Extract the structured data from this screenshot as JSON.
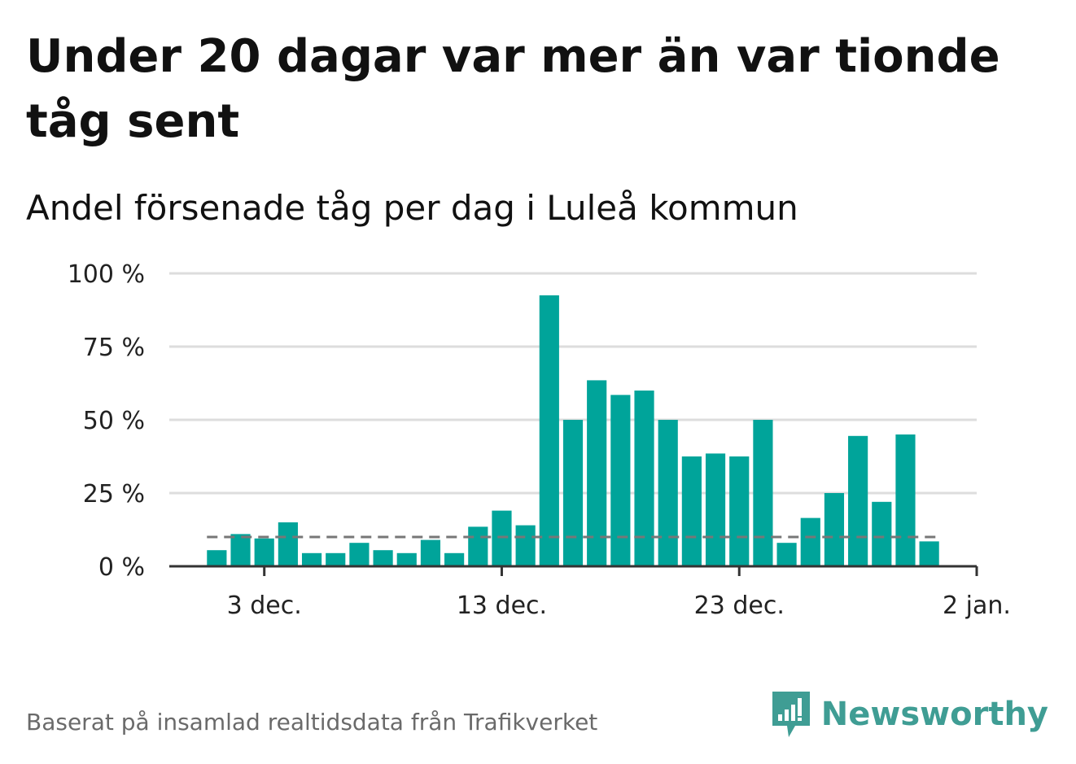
{
  "title": "Under 20 dagar var mer än var tionde tåg sent",
  "subtitle": "Andel försenade tåg per dag i Luleå kommun",
  "footer": "Baserat på insamlad realtidsdata från Trafikverket",
  "brand": {
    "name": "Newsworthy",
    "logo_icon": "newsworthy-bars-icon"
  },
  "colors": {
    "bar": "#00a49a",
    "reference_line": "#777777",
    "grid": "#dddddd",
    "axis": "#333333",
    "brand": "#3f9d94"
  },
  "chart_data": {
    "type": "bar",
    "title": "Under 20 dagar var mer än var tionde tåg sent",
    "subtitle": "Andel försenade tåg per dag i Luleå kommun",
    "x": [
      "2023-12-01",
      "2023-12-02",
      "2023-12-03",
      "2023-12-04",
      "2023-12-05",
      "2023-12-06",
      "2023-12-07",
      "2023-12-08",
      "2023-12-09",
      "2023-12-10",
      "2023-12-11",
      "2023-12-12",
      "2023-12-13",
      "2023-12-14",
      "2023-12-15",
      "2023-12-16",
      "2023-12-17",
      "2023-12-18",
      "2023-12-19",
      "2023-12-20",
      "2023-12-21",
      "2023-12-22",
      "2023-12-23",
      "2023-12-24",
      "2023-12-25",
      "2023-12-26",
      "2023-12-27",
      "2023-12-28",
      "2023-12-29",
      "2023-12-30",
      "2023-12-31"
    ],
    "values": [
      5.5,
      11,
      9.5,
      15,
      4.5,
      4.5,
      8,
      5.5,
      4.5,
      9,
      4.5,
      13.5,
      19,
      14,
      92.5,
      50,
      63.5,
      58.5,
      60,
      50,
      37.5,
      38.5,
      37.5,
      50,
      8,
      16.5,
      25,
      44.5,
      22,
      45,
      8.5
    ],
    "reference_line": {
      "value": 10,
      "style": "dashed"
    },
    "x_ticks": [
      {
        "date": "2023-12-03",
        "label": "3 dec."
      },
      {
        "date": "2023-12-13",
        "label": "13 dec."
      },
      {
        "date": "2023-12-23",
        "label": "23 dec."
      },
      {
        "date": "2024-01-02",
        "label": "2 jan."
      }
    ],
    "y_ticks": [
      {
        "value": 0,
        "label": "0 %"
      },
      {
        "value": 25,
        "label": "25 %"
      },
      {
        "value": 50,
        "label": "50 %"
      },
      {
        "value": 75,
        "label": "75 %"
      },
      {
        "value": 100,
        "label": "100 %"
      }
    ],
    "ylim": [
      0,
      100
    ],
    "xlim": [
      "2023-11-29",
      "2024-01-02"
    ],
    "grid": true,
    "legend": "none"
  }
}
